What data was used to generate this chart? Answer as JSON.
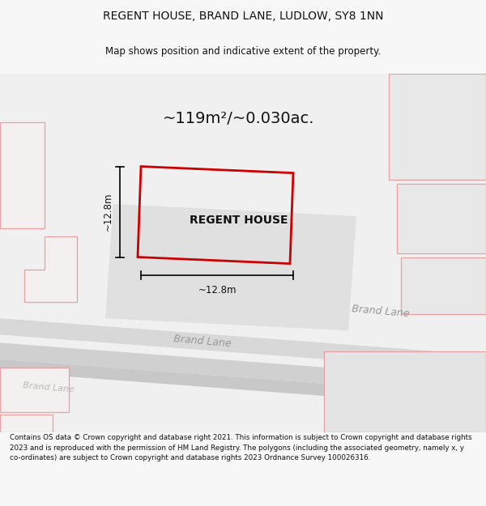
{
  "title_line1": "REGENT HOUSE, BRAND LANE, LUDLOW, SY8 1NN",
  "title_line2": "Map shows position and indicative extent of the property.",
  "area_label": "~119m²/~0.030ac.",
  "property_label": "REGENT HOUSE",
  "dim_label_v": "~12.8m",
  "dim_label_h": "~12.8m",
  "footer_text": "Contains OS data © Crown copyright and database right 2021. This information is subject to Crown copyright and database rights 2023 and is reproduced with the permission of HM Land Registry. The polygons (including the associated geometry, namely x, y co-ordinates) are subject to Crown copyright and database rights 2023 Ordnance Survey 100026316.",
  "bg_color": "#f7f7f7",
  "map_bg": "#f2f2f2",
  "road_fill": "#d8d8d8",
  "road_fill2": "#e0e0e0",
  "building_fill": "#e8e8e8",
  "building_fill_light": "#f5f0f0",
  "building_stroke": "#e8a0a0",
  "property_stroke": "#cc0000",
  "dim_color": "#111111",
  "title_color": "#111111",
  "footer_color": "#111111",
  "road_label_color": "#999999",
  "road_label_color2": "#bbbbbb"
}
